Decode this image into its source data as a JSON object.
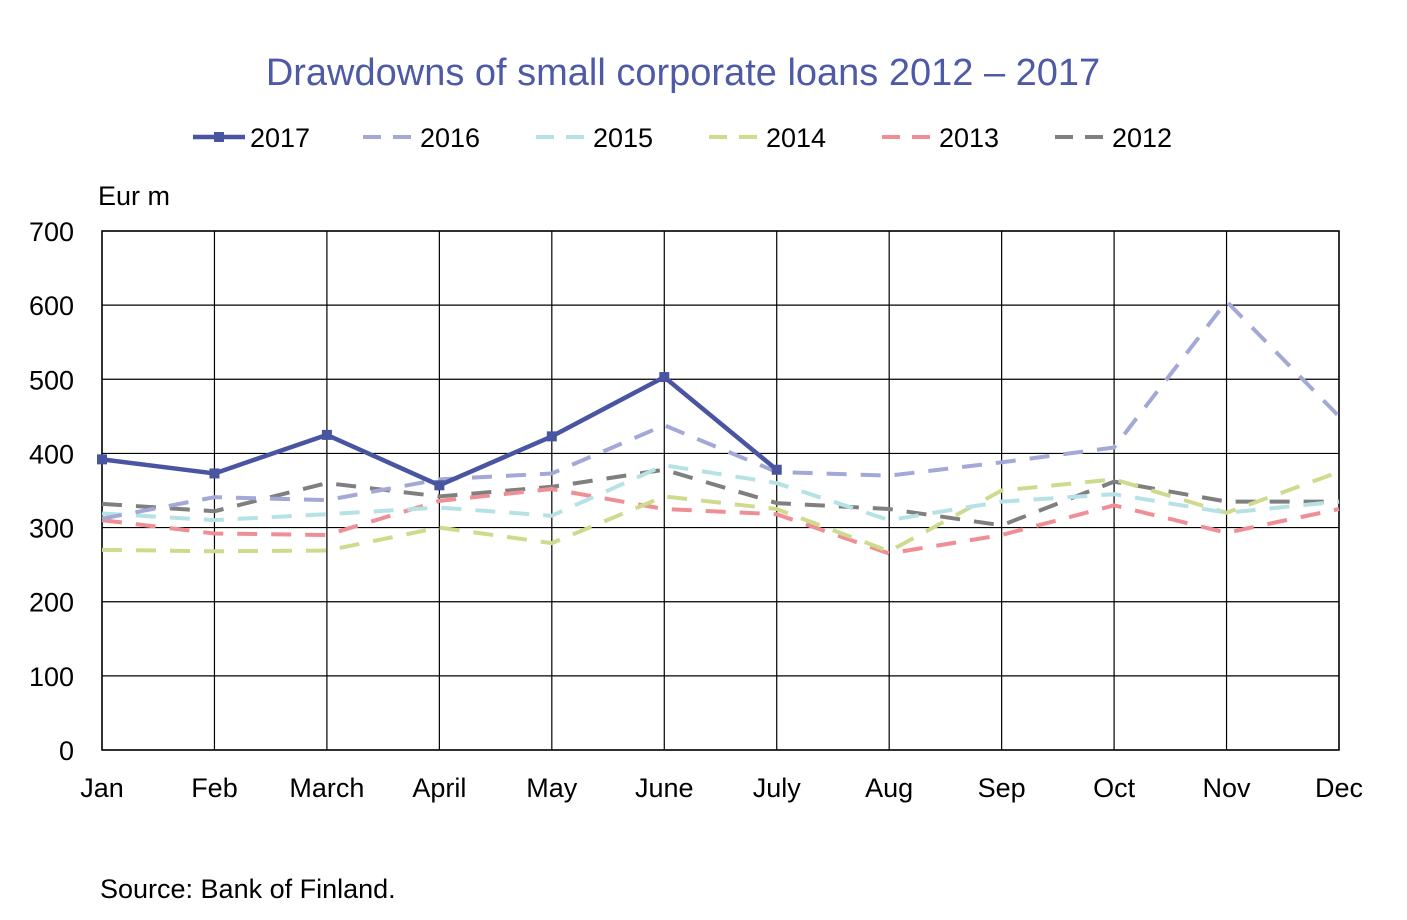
{
  "chart_data": {
    "type": "line",
    "title": "Drawdowns of small corporate loans 2012 – 2017",
    "ylabel": "Eur m",
    "xlabel": "",
    "source": "Source: Bank of Finland.",
    "ylim": [
      0,
      700
    ],
    "yticks": [
      "0",
      "100",
      "200",
      "300",
      "400",
      "500",
      "600",
      "700"
    ],
    "categories": [
      "Jan",
      "Feb",
      "March",
      "April",
      "May",
      "June",
      "July",
      "Aug",
      "Sep",
      "Oct",
      "Nov",
      "Dec"
    ],
    "grid": true,
    "legend_position": "top",
    "series": [
      {
        "name": "2017",
        "color": "#4a55a2",
        "dashed": false,
        "markers": true,
        "values": [
          392,
          373,
          425,
          357,
          423,
          503,
          378,
          null,
          null,
          null,
          null,
          null
        ]
      },
      {
        "name": "2016",
        "color": "#a3a8d6",
        "dashed": true,
        "markers": false,
        "values": [
          312,
          341,
          337,
          365,
          373,
          438,
          375,
          370,
          388,
          408,
          605,
          450
        ]
      },
      {
        "name": "2015",
        "color": "#b6e2e6",
        "dashed": true,
        "markers": false,
        "values": [
          319,
          310,
          318,
          327,
          316,
          384,
          360,
          310,
          335,
          345,
          320,
          335
        ]
      },
      {
        "name": "2014",
        "color": "#cfdb8c",
        "dashed": true,
        "markers": false,
        "values": [
          270,
          268,
          269,
          300,
          279,
          342,
          325,
          268,
          350,
          365,
          320,
          375
        ]
      },
      {
        "name": "2013",
        "color": "#ef8f95",
        "dashed": true,
        "markers": false,
        "values": [
          310,
          292,
          290,
          336,
          352,
          325,
          318,
          265,
          290,
          330,
          293,
          325
        ]
      },
      {
        "name": "2012",
        "color": "#7f7f7f",
        "dashed": true,
        "markers": false,
        "values": [
          332,
          322,
          360,
          342,
          355,
          378,
          333,
          325,
          303,
          362,
          335,
          335
        ]
      }
    ]
  }
}
